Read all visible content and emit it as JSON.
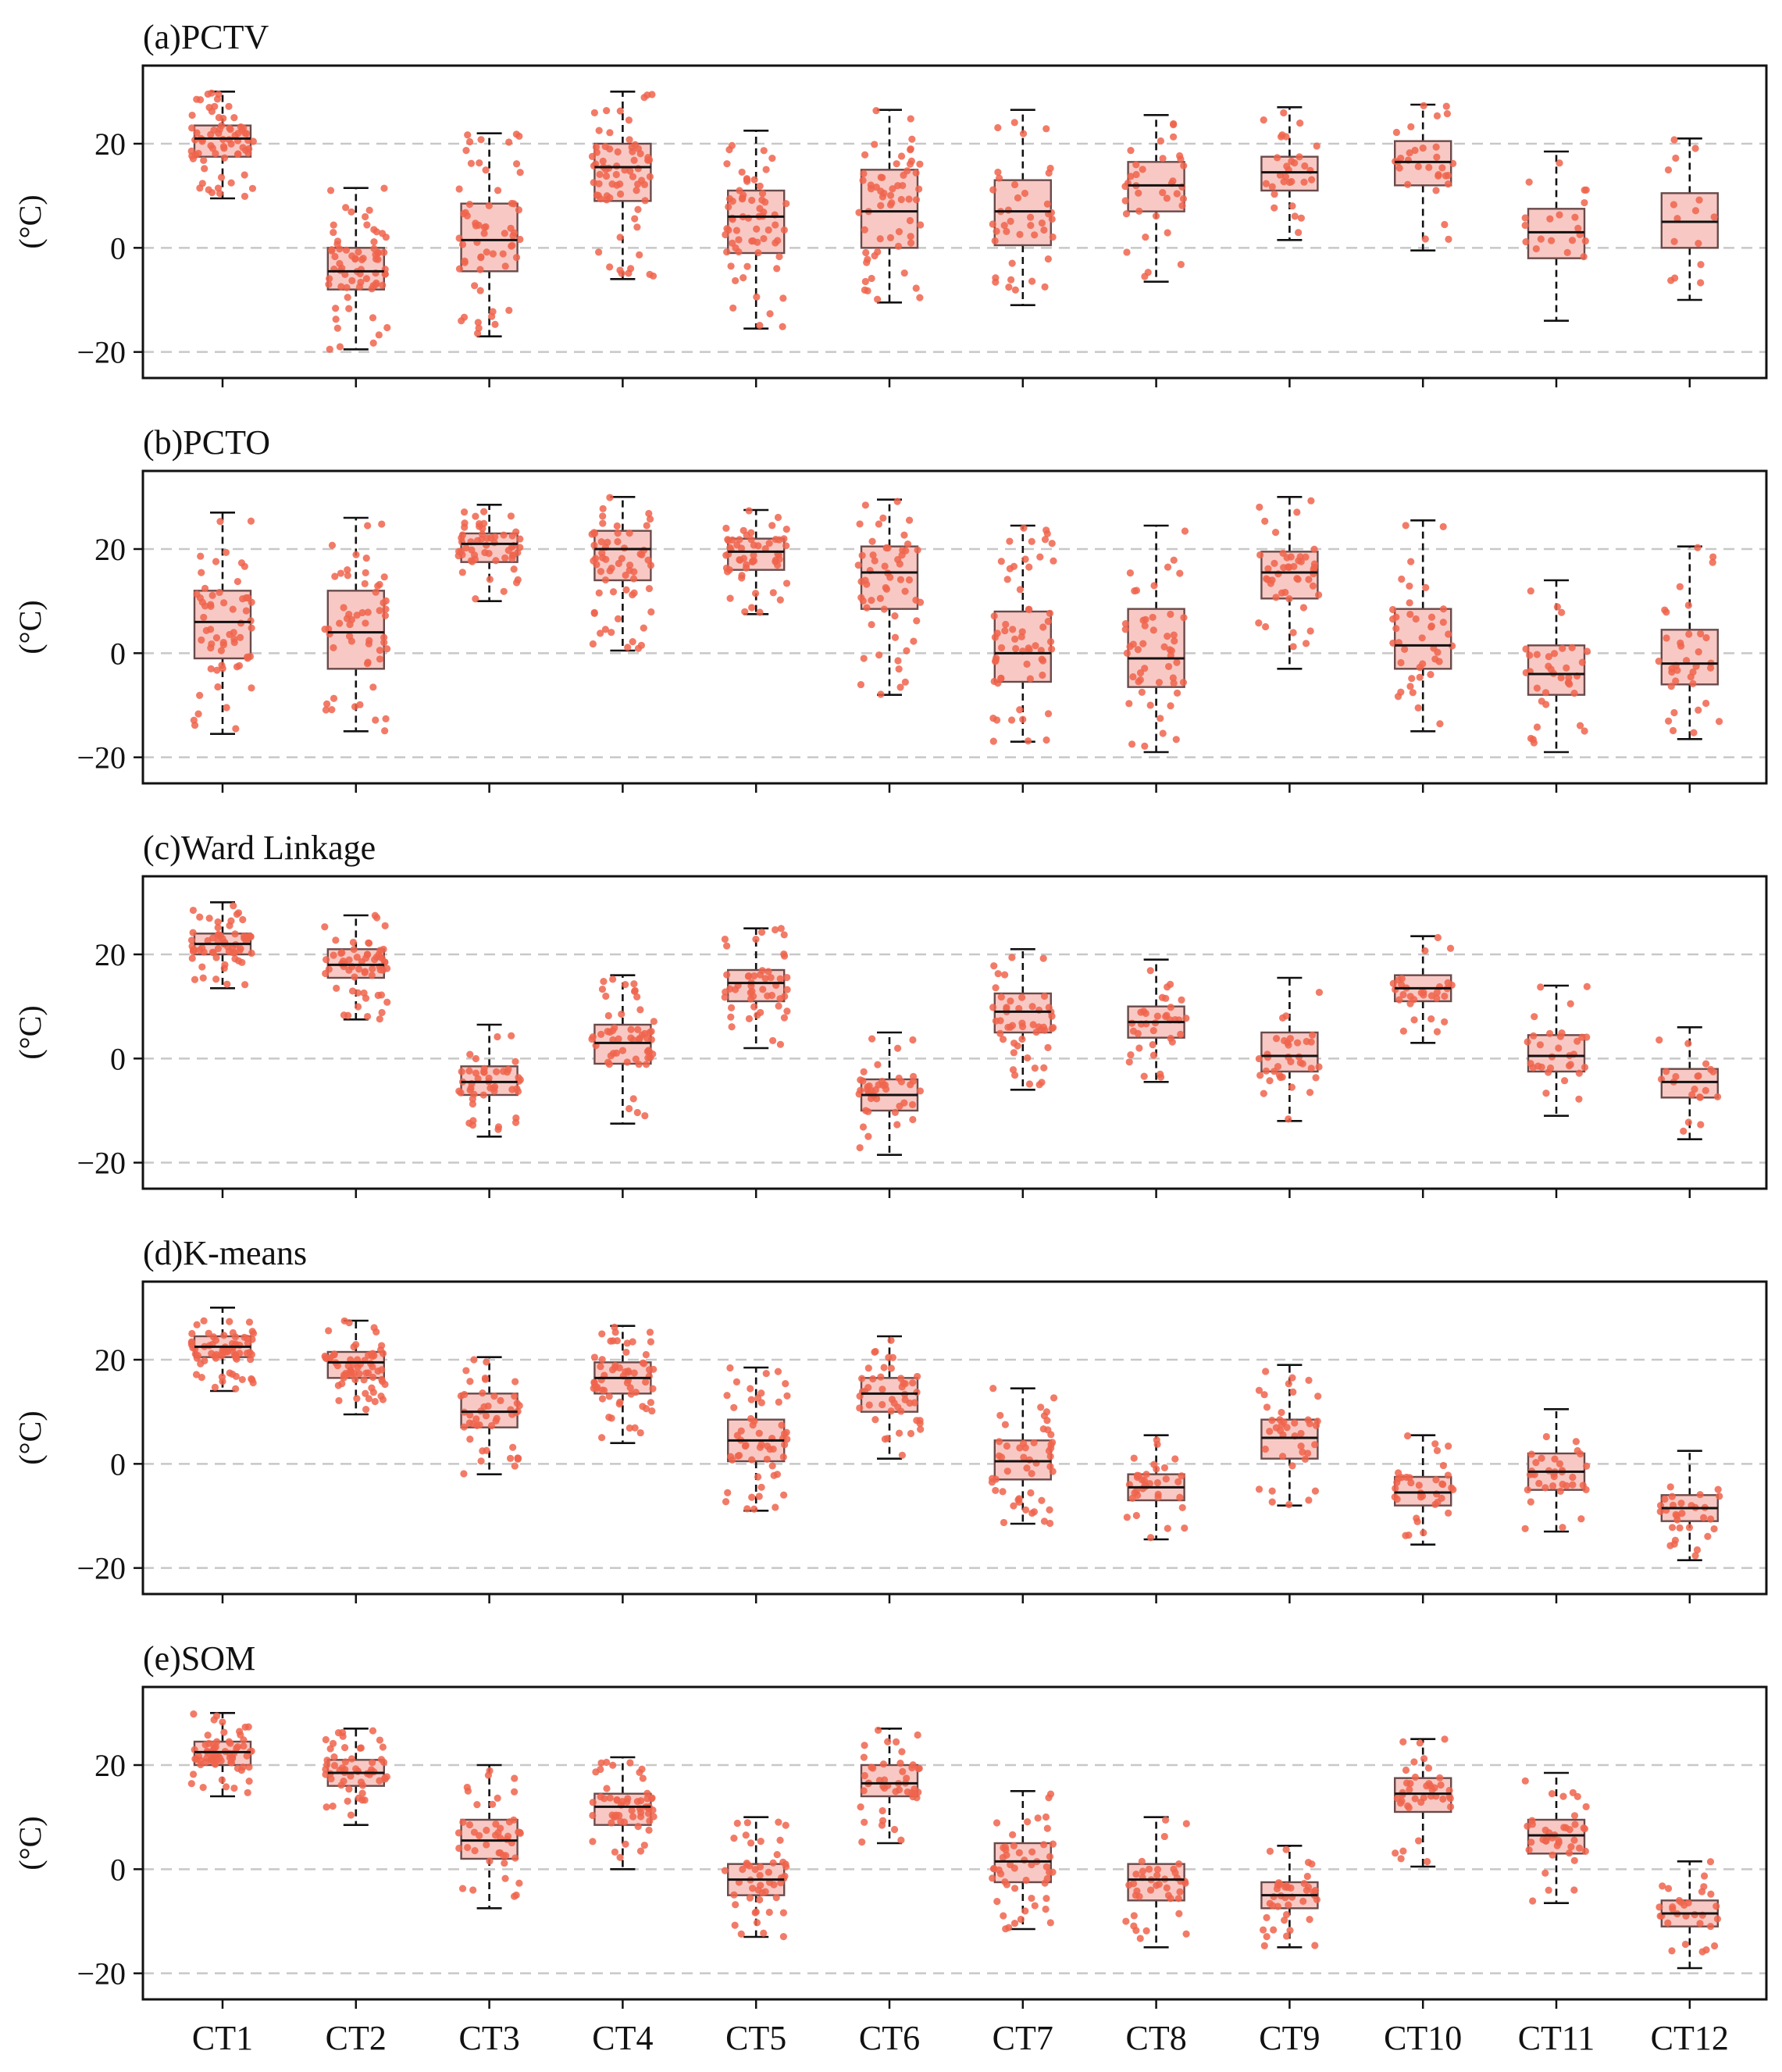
{
  "figure": {
    "style": {
      "box_fill": "#f8c9c4",
      "box_stroke": "#6a4a4a",
      "median_color": "#111111",
      "point_color": "#f0644c",
      "grid_color": "#c8c8c8",
      "frame_color": "#111111"
    }
  },
  "chart_data": [
    {
      "type": "box",
      "title": "(a)PCTV",
      "ylabel": "(°C)",
      "ylim": [
        -25,
        35
      ],
      "yticks": [
        -20,
        0,
        20
      ],
      "grid_y": [
        -20,
        0,
        20
      ],
      "categories": [
        "CT1",
        "CT2",
        "CT3",
        "CT4",
        "CT5",
        "CT6",
        "CT7",
        "CT8",
        "CT9",
        "CT10",
        "CT11",
        "CT12"
      ],
      "boxes": [
        {
          "whislo": 9.5,
          "q1": 17.5,
          "med": 21.0,
          "q3": 23.5,
          "whishi": 30.0
        },
        {
          "whislo": -19.5,
          "q1": -8.0,
          "med": -4.5,
          "q3": 0.0,
          "whishi": 11.5
        },
        {
          "whislo": -17.0,
          "q1": -4.5,
          "med": 1.5,
          "q3": 8.5,
          "whishi": 22.0
        },
        {
          "whislo": -6.0,
          "q1": 9.0,
          "med": 15.5,
          "q3": 20.0,
          "whishi": 30.0
        },
        {
          "whislo": -15.5,
          "q1": -1.0,
          "med": 6.0,
          "q3": 11.0,
          "whishi": 22.5
        },
        {
          "whislo": -10.5,
          "q1": 0.0,
          "med": 7.0,
          "q3": 15.0,
          "whishi": 26.5
        },
        {
          "whislo": -11.0,
          "q1": 0.5,
          "med": 7.0,
          "q3": 13.0,
          "whishi": 26.5
        },
        {
          "whislo": -6.5,
          "q1": 7.0,
          "med": 12.0,
          "q3": 16.5,
          "whishi": 25.5
        },
        {
          "whislo": 1.5,
          "q1": 11.0,
          "med": 14.5,
          "q3": 17.5,
          "whishi": 27.0
        },
        {
          "whislo": -0.5,
          "q1": 12.0,
          "med": 16.5,
          "q3": 20.5,
          "whishi": 27.5
        },
        {
          "whislo": -14.0,
          "q1": -2.0,
          "med": 3.0,
          "q3": 7.5,
          "whishi": 18.5
        },
        {
          "whislo": -10.0,
          "q1": 0.0,
          "med": 5.0,
          "q3": 10.5,
          "whishi": 21.0
        }
      ],
      "point_counts": [
        70,
        70,
        60,
        70,
        65,
        60,
        40,
        35,
        30,
        30,
        20,
        15
      ]
    },
    {
      "type": "box",
      "title": "(b)PCTO",
      "ylabel": "(°C)",
      "ylim": [
        -25,
        35
      ],
      "yticks": [
        -20,
        0,
        20
      ],
      "grid_y": [
        -20,
        0,
        20
      ],
      "categories": [
        "CT1",
        "CT2",
        "CT3",
        "CT4",
        "CT5",
        "CT6",
        "CT7",
        "CT8",
        "CT9",
        "CT10",
        "CT11",
        "CT12"
      ],
      "boxes": [
        {
          "whislo": -15.5,
          "q1": -1.0,
          "med": 6.0,
          "q3": 12.0,
          "whishi": 27.0
        },
        {
          "whislo": -15.0,
          "q1": -3.0,
          "med": 4.0,
          "q3": 12.0,
          "whishi": 26.0
        },
        {
          "whislo": 10.0,
          "q1": 17.5,
          "med": 21.0,
          "q3": 23.0,
          "whishi": 28.5
        },
        {
          "whislo": 0.5,
          "q1": 14.0,
          "med": 20.0,
          "q3": 23.5,
          "whishi": 30.0
        },
        {
          "whislo": 7.5,
          "q1": 16.0,
          "med": 19.5,
          "q3": 22.0,
          "whishi": 27.5
        },
        {
          "whislo": -8.0,
          "q1": 8.5,
          "med": 15.5,
          "q3": 20.5,
          "whishi": 29.5
        },
        {
          "whislo": -17.0,
          "q1": -5.5,
          "med": 0.0,
          "q3": 8.0,
          "whishi": 24.5
        },
        {
          "whislo": -19.0,
          "q1": -6.5,
          "med": -1.0,
          "q3": 8.5,
          "whishi": 24.5
        },
        {
          "whislo": -3.0,
          "q1": 10.5,
          "med": 15.5,
          "q3": 19.5,
          "whishi": 30.0
        },
        {
          "whislo": -15.0,
          "q1": -3.0,
          "med": 1.5,
          "q3": 8.5,
          "whishi": 25.5
        },
        {
          "whislo": -19.0,
          "q1": -8.0,
          "med": -4.0,
          "q3": 1.5,
          "whishi": 14.0
        },
        {
          "whislo": -16.5,
          "q1": -6.0,
          "med": -2.0,
          "q3": 4.5,
          "whishi": 20.5
        }
      ],
      "point_counts": [
        60,
        55,
        55,
        60,
        55,
        55,
        60,
        50,
        45,
        40,
        35,
        35
      ]
    },
    {
      "type": "box",
      "title": "(c)Ward Linkage",
      "ylabel": "(°C)",
      "ylim": [
        -25,
        35
      ],
      "yticks": [
        -20,
        0,
        20
      ],
      "grid_y": [
        -20,
        0,
        20
      ],
      "categories": [
        "CT1",
        "CT2",
        "CT3",
        "CT4",
        "CT5",
        "CT6",
        "CT7",
        "CT8",
        "CT9",
        "CT10",
        "CT11",
        "CT12"
      ],
      "boxes": [
        {
          "whislo": 13.5,
          "q1": 20.0,
          "med": 22.0,
          "q3": 24.0,
          "whishi": 30.0
        },
        {
          "whislo": 7.5,
          "q1": 15.5,
          "med": 18.0,
          "q3": 21.0,
          "whishi": 27.5
        },
        {
          "whislo": -15.0,
          "q1": -7.0,
          "med": -4.5,
          "q3": -1.5,
          "whishi": 6.5
        },
        {
          "whislo": -12.5,
          "q1": -1.0,
          "med": 3.0,
          "q3": 6.5,
          "whishi": 16.0
        },
        {
          "whislo": 2.0,
          "q1": 11.0,
          "med": 14.5,
          "q3": 17.0,
          "whishi": 25.0
        },
        {
          "whislo": -18.5,
          "q1": -10.0,
          "med": -7.0,
          "q3": -4.0,
          "whishi": 5.0
        },
        {
          "whislo": -6.0,
          "q1": 5.0,
          "med": 9.0,
          "q3": 12.5,
          "whishi": 21.0
        },
        {
          "whislo": -4.5,
          "q1": 4.0,
          "med": 7.0,
          "q3": 10.0,
          "whishi": 19.0
        },
        {
          "whislo": -12.0,
          "q1": -2.5,
          "med": 0.5,
          "q3": 5.0,
          "whishi": 15.5
        },
        {
          "whislo": 3.0,
          "q1": 11.0,
          "med": 13.5,
          "q3": 16.0,
          "whishi": 23.5
        },
        {
          "whislo": -11.0,
          "q1": -2.5,
          "med": 0.5,
          "q3": 4.5,
          "whishi": 14.0
        },
        {
          "whislo": -15.5,
          "q1": -7.5,
          "med": -4.5,
          "q3": -2.0,
          "whishi": 6.0
        }
      ],
      "point_counts": [
        65,
        60,
        45,
        55,
        50,
        40,
        50,
        35,
        35,
        30,
        30,
        20
      ]
    },
    {
      "type": "box",
      "title": "(d)K-means",
      "ylabel": "(°C)",
      "ylim": [
        -25,
        35
      ],
      "yticks": [
        -20,
        0,
        20
      ],
      "grid_y": [
        -20,
        0,
        20
      ],
      "categories": [
        "CT1",
        "CT2",
        "CT3",
        "CT4",
        "CT5",
        "CT6",
        "CT7",
        "CT8",
        "CT9",
        "CT10",
        "CT11",
        "CT12"
      ],
      "boxes": [
        {
          "whislo": 14.0,
          "q1": 20.5,
          "med": 22.5,
          "q3": 24.5,
          "whishi": 30.0
        },
        {
          "whislo": 9.5,
          "q1": 16.5,
          "med": 19.5,
          "q3": 21.5,
          "whishi": 27.5
        },
        {
          "whislo": -2.0,
          "q1": 7.0,
          "med": 10.0,
          "q3": 13.5,
          "whishi": 20.5
        },
        {
          "whislo": 4.0,
          "q1": 13.5,
          "med": 16.5,
          "q3": 19.5,
          "whishi": 26.5
        },
        {
          "whislo": -9.0,
          "q1": 0.5,
          "med": 4.5,
          "q3": 8.5,
          "whishi": 18.5
        },
        {
          "whislo": 1.0,
          "q1": 10.0,
          "med": 13.5,
          "q3": 16.5,
          "whishi": 24.5
        },
        {
          "whislo": -11.5,
          "q1": -3.0,
          "med": 0.5,
          "q3": 4.5,
          "whishi": 14.5
        },
        {
          "whislo": -14.5,
          "q1": -7.0,
          "med": -4.5,
          "q3": -2.0,
          "whishi": 5.5
        },
        {
          "whislo": -8.0,
          "q1": 1.0,
          "med": 5.0,
          "q3": 8.5,
          "whishi": 19.0
        },
        {
          "whislo": -15.5,
          "q1": -8.0,
          "med": -5.5,
          "q3": -2.5,
          "whishi": 5.5
        },
        {
          "whislo": -13.0,
          "q1": -5.0,
          "med": -1.5,
          "q3": 2.0,
          "whishi": 10.5
        },
        {
          "whislo": -18.5,
          "q1": -11.0,
          "med": -8.5,
          "q3": -6.0,
          "whishi": 2.5
        }
      ],
      "point_counts": [
        70,
        65,
        45,
        60,
        55,
        45,
        50,
        35,
        40,
        35,
        35,
        30
      ]
    },
    {
      "type": "box",
      "title": "(e)SOM",
      "ylabel": "(°C)",
      "ylim": [
        -25,
        35
      ],
      "yticks": [
        -20,
        0,
        20
      ],
      "grid_y": [
        -20,
        0,
        20
      ],
      "categories": [
        "CT1",
        "CT2",
        "CT3",
        "CT4",
        "CT5",
        "CT6",
        "CT7",
        "CT8",
        "CT9",
        "CT10",
        "CT11",
        "CT12"
      ],
      "boxes": [
        {
          "whislo": 14.0,
          "q1": 20.0,
          "med": 22.5,
          "q3": 24.5,
          "whishi": 30.0
        },
        {
          "whislo": 8.5,
          "q1": 16.0,
          "med": 18.5,
          "q3": 21.0,
          "whishi": 27.0
        },
        {
          "whislo": -7.5,
          "q1": 2.0,
          "med": 5.5,
          "q3": 9.5,
          "whishi": 20.0
        },
        {
          "whislo": 0.0,
          "q1": 8.5,
          "med": 12.0,
          "q3": 14.5,
          "whishi": 21.5
        },
        {
          "whislo": -13.0,
          "q1": -5.0,
          "med": -2.0,
          "q3": 1.0,
          "whishi": 10.0
        },
        {
          "whislo": 5.0,
          "q1": 14.0,
          "med": 16.5,
          "q3": 20.0,
          "whishi": 27.0
        },
        {
          "whislo": -11.5,
          "q1": -2.5,
          "med": 1.5,
          "q3": 5.0,
          "whishi": 15.0
        },
        {
          "whislo": -15.0,
          "q1": -6.0,
          "med": -2.0,
          "q3": 1.0,
          "whishi": 10.0
        },
        {
          "whislo": -15.0,
          "q1": -7.5,
          "med": -5.0,
          "q3": -2.5,
          "whishi": 4.5
        },
        {
          "whislo": 0.5,
          "q1": 11.0,
          "med": 14.5,
          "q3": 17.5,
          "whishi": 25.0
        },
        {
          "whislo": -6.5,
          "q1": 3.0,
          "med": 6.5,
          "q3": 9.5,
          "whishi": 18.5
        },
        {
          "whislo": -19.0,
          "q1": -11.0,
          "med": -8.5,
          "q3": -6.0,
          "whishi": 1.5
        }
      ],
      "point_counts": [
        70,
        55,
        45,
        55,
        50,
        45,
        50,
        40,
        40,
        40,
        40,
        30
      ]
    }
  ]
}
